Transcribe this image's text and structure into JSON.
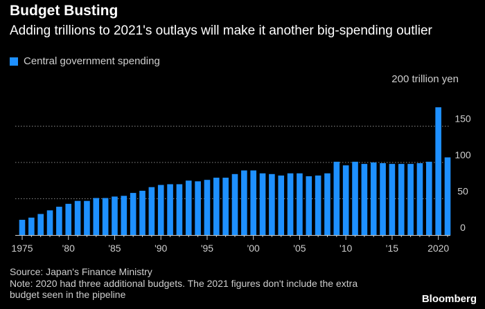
{
  "header": {
    "title": "Budget Busting",
    "subtitle": "Adding trillions to 2021's outlays will make it another big-spending outlier"
  },
  "legend": {
    "label": "Central government spending",
    "color": "#1e90ff"
  },
  "footer": {
    "source": "Source: Japan's Finance Ministry",
    "note_line1": "Note: 2020 had three additional budgets. The 2021 figures don't include the extra",
    "note_line2": "budget seen in the pipeline",
    "brand": "Bloomberg"
  },
  "chart_data": {
    "type": "bar",
    "title": "Budget Busting",
    "subtitle": "Adding trillions to 2021's outlays will make it another big-spending outlier",
    "ylabel": "200 trillion yen",
    "xlabel": "",
    "ylim": [
      0,
      200
    ],
    "yticks": [
      0,
      50,
      100,
      150
    ],
    "grid": true,
    "series": [
      {
        "name": "Central government spending",
        "categories": [
          1975,
          1976,
          1977,
          1978,
          1979,
          1980,
          1981,
          1982,
          1983,
          1984,
          1985,
          1986,
          1987,
          1988,
          1989,
          1990,
          1991,
          1992,
          1993,
          1994,
          1995,
          1996,
          1997,
          1998,
          1999,
          2000,
          2001,
          2002,
          2003,
          2004,
          2005,
          2006,
          2007,
          2008,
          2009,
          2010,
          2011,
          2012,
          2013,
          2014,
          2015,
          2016,
          2017,
          2018,
          2019,
          2020,
          2021
        ],
        "values": [
          21,
          24,
          29,
          34,
          39,
          43,
          47,
          47,
          51,
          51,
          53,
          54,
          58,
          61,
          66,
          69,
          70,
          70,
          75,
          74,
          76,
          79,
          79,
          84,
          89,
          89,
          85,
          84,
          82,
          85,
          85,
          81,
          82,
          85,
          101,
          96,
          101,
          98,
          100,
          99,
          98,
          98,
          98,
          99,
          101,
          176,
          107
        ]
      }
    ],
    "xtick_labels": [
      {
        "year": 1975,
        "label": "1975"
      },
      {
        "year": 1980,
        "label": "'80"
      },
      {
        "year": 1985,
        "label": "'85"
      },
      {
        "year": 1990,
        "label": "'90"
      },
      {
        "year": 1995,
        "label": "'95"
      },
      {
        "year": 2000,
        "label": "'00"
      },
      {
        "year": 2005,
        "label": "'05"
      },
      {
        "year": 2010,
        "label": "'10"
      },
      {
        "year": 2015,
        "label": "'15"
      },
      {
        "year": 2020,
        "label": "2020"
      }
    ]
  }
}
